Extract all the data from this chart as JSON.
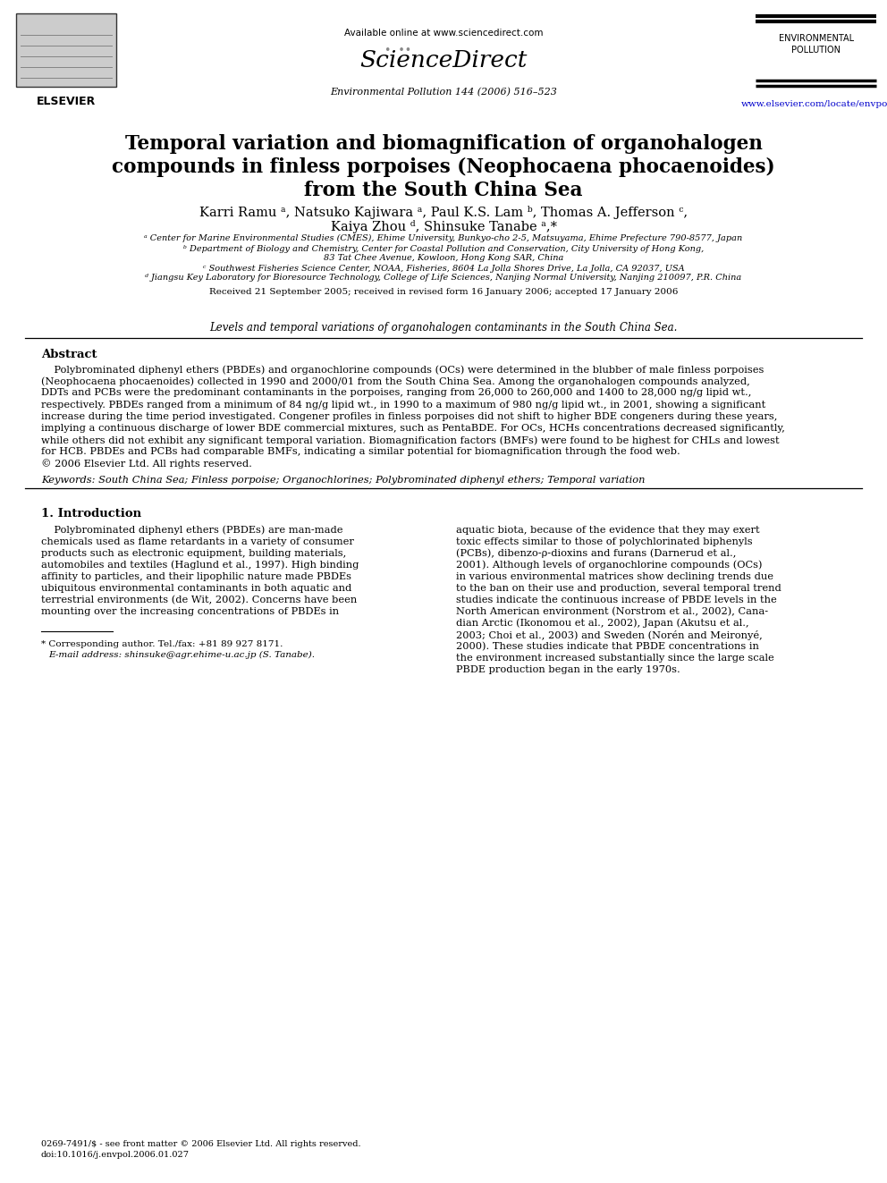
{
  "bg_color": "#ffffff",
  "link_color": "#0000CC",
  "online_text": "Available online at www.sciencedirect.com",
  "sciencedirect_text": "ScienceDirect",
  "journal_ref": "Environmental Pollution 144 (2006) 516–523",
  "env_poll_text": "ENVIRONMENTAL\nPOLLUTION",
  "elsevier_url": "www.elsevier.com/locate/envpol",
  "title_line1": "Temporal variation and biomagnification of organohalogen",
  "title_line2a": "compounds in finless porpoises (",
  "title_line2b": "Neophocaena phocaenoides",
  "title_line2c": ")",
  "title_line3": "from the South China Sea",
  "authors_line1": "Karri Ramu ᵃ, Natsuko Kajiwara ᵃ, Paul K.S. Lam ᵇ, Thomas A. Jefferson ᶜ,",
  "authors_line2": "Kaiya Zhou ᵈ, Shinsuke Tanabe ᵃ,*",
  "aff1": "ᵃ Center for Marine Environmental Studies (CMES), Ehime University, Bunkyo-cho 2-5, Matsuyama, Ehime Prefecture 790-8577, Japan",
  "aff2a": "ᵇ Department of Biology and Chemistry, Center for Coastal Pollution and Conservation, City University of Hong Kong,",
  "aff2b": "83 Tat Chee Avenue, Kowloon, Hong Kong SAR, China",
  "aff3": "ᶜ Southwest Fisheries Science Center, NOAA, Fisheries, 8604 La Jolla Shores Drive, La Jolla, CA 92037, USA",
  "aff4": "ᵈ Jiangsu Key Laboratory for Bioresource Technology, College of Life Sciences, Nanjing Normal University, Nanjing 210097, P.R. China",
  "received_text": "Received 21 September 2005; received in revised form 16 January 2006; accepted 17 January 2006",
  "tagline": "Levels and temporal variations of organohalogen contaminants in the South China Sea.",
  "abstract_title": "Abstract",
  "abstract_lines": [
    "    Polybrominated diphenyl ethers (PBDEs) and organochlorine compounds (OCs) were determined in the blubber of male finless porpoises",
    "(Neophocaena phocaenoides) collected in 1990 and 2000/01 from the South China Sea. Among the organohalogen compounds analyzed,",
    "DDTs and PCBs were the predominant contaminants in the porpoises, ranging from 26,000 to 260,000 and 1400 to 28,000 ng/g lipid wt.,",
    "respectively. PBDEs ranged from a minimum of 84 ng/g lipid wt., in 1990 to a maximum of 980 ng/g lipid wt., in 2001, showing a significant",
    "increase during the time period investigated. Congener profiles in finless porpoises did not shift to higher BDE congeners during these years,",
    "implying a continuous discharge of lower BDE commercial mixtures, such as PentaBDE. For OCs, HCHs concentrations decreased significantly,",
    "while others did not exhibit any significant temporal variation. Biomagnification factors (BMFs) were found to be highest for CHLs and lowest",
    "for HCB. PBDEs and PCBs had comparable BMFs, indicating a similar potential for biomagnification through the food web.",
    "© 2006 Elsevier Ltd. All rights reserved."
  ],
  "keywords_text": "Keywords: South China Sea; Finless porpoise; Organochlorines; Polybrominated diphenyl ethers; Temporal variation",
  "intro_title": "1. Introduction",
  "left_col_lines": [
    "    Polybrominated diphenyl ethers (PBDEs) are man-made",
    "chemicals used as flame retardants in a variety of consumer",
    "products such as electronic equipment, building materials,",
    "automobiles and textiles (Haglund et al., 1997). High binding",
    "affinity to particles, and their lipophilic nature made PBDEs",
    "ubiquitous environmental contaminants in both aquatic and",
    "terrestrial environments (de Wit, 2002). Concerns have been",
    "mounting over the increasing concentrations of PBDEs in"
  ],
  "right_col_lines": [
    "aquatic biota, because of the evidence that they may exert",
    "toxic effects similar to those of polychlorinated biphenyls",
    "(PCBs), dibenzo-ρ-dioxins and furans (Darnerud et al.,",
    "2001). Although levels of organochlorine compounds (OCs)",
    "in various environmental matrices show declining trends due",
    "to the ban on their use and production, several temporal trend",
    "studies indicate the continuous increase of PBDE levels in the",
    "North American environment (Norstrom et al., 2002), Cana-",
    "dian Arctic (Ikonomou et al., 2002), Japan (Akutsu et al.,",
    "2003; Choi et al., 2003) and Sweden (Norén and Meironyé,",
    "2000). These studies indicate that PBDE concentrations in",
    "the environment increased substantially since the large scale",
    "PBDE production began in the early 1970s."
  ],
  "footnote1": "* Corresponding author. Tel./fax: +81 89 927 8171.",
  "footnote2": "E-mail address: shinsuke@agr.ehime-u.ac.jp (S. Tanabe).",
  "bottom1": "0269-7491/$ - see front matter © 2006 Elsevier Ltd. All rights reserved.",
  "bottom2": "doi:10.1016/j.envpol.2006.01.027"
}
